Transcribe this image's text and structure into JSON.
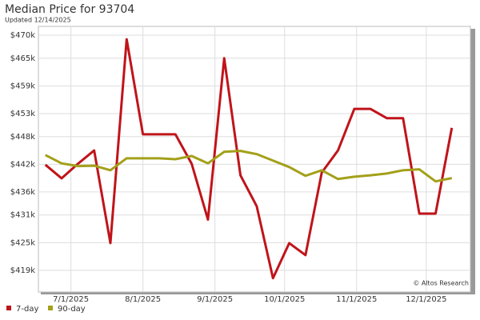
{
  "chart_data": {
    "type": "line",
    "title": "Median Price for 93704",
    "subtitle": "Updated 12/14/2025",
    "watermark": "© Altos Research",
    "x": [
      "2025-06-20",
      "2025-06-27",
      "2025-07-04",
      "2025-07-11",
      "2025-07-18",
      "2025-07-25",
      "2025-08-01",
      "2025-08-08",
      "2025-08-15",
      "2025-08-22",
      "2025-08-29",
      "2025-09-05",
      "2025-09-12",
      "2025-09-19",
      "2025-09-26",
      "2025-10-03",
      "2025-10-10",
      "2025-10-17",
      "2025-10-24",
      "2025-10-31",
      "2025-11-07",
      "2025-11-14",
      "2025-11-21",
      "2025-11-28",
      "2025-12-05",
      "2025-12-12"
    ],
    "series": [
      {
        "name": "7-day",
        "color": "#c0141a",
        "values": [
          441900,
          438950,
          442100,
          445000,
          424900,
          469100,
          448500,
          448500,
          448500,
          442100,
          430000,
          465000,
          439600,
          432900,
          417300,
          424900,
          422300,
          440200,
          445000,
          454000,
          454000,
          452000,
          452000,
          431300,
          431300,
          449900
        ]
      },
      {
        "name": "90-day",
        "color": "#a3a01a",
        "values": [
          444000,
          442200,
          441600,
          441700,
          440700,
          443300,
          443300,
          443300,
          443100,
          443800,
          442200,
          444700,
          444900,
          444200,
          442800,
          441400,
          439500,
          440700,
          438800,
          439300,
          439600,
          440000,
          440700,
          440900,
          438300,
          439000
        ]
      }
    ],
    "xlim": [
      "2025-06-17",
      "2025-12-20"
    ],
    "xticks": [
      {
        "value": "2025-07-01",
        "label": "7/1/2025"
      },
      {
        "value": "2025-08-01",
        "label": "8/1/2025"
      },
      {
        "value": "2025-09-01",
        "label": "9/1/2025"
      },
      {
        "value": "2025-10-01",
        "label": "10/1/2025"
      },
      {
        "value": "2025-11-01",
        "label": "11/1/2025"
      },
      {
        "value": "2025-12-01",
        "label": "12/1/2025"
      }
    ],
    "ylim": [
      414300,
      471900
    ],
    "yticks": [
      {
        "value": 470000,
        "label": "$470k"
      },
      {
        "value": 465000,
        "label": "$465k"
      },
      {
        "value": 459000,
        "label": "$459k"
      },
      {
        "value": 453000,
        "label": "$453k"
      },
      {
        "value": 448000,
        "label": "$448k"
      },
      {
        "value": 442000,
        "label": "$442k"
      },
      {
        "value": 436000,
        "label": "$436k"
      },
      {
        "value": 431000,
        "label": "$431k"
      },
      {
        "value": 425000,
        "label": "$425k"
      },
      {
        "value": 419000,
        "label": "$419k"
      }
    ],
    "grid": true
  }
}
